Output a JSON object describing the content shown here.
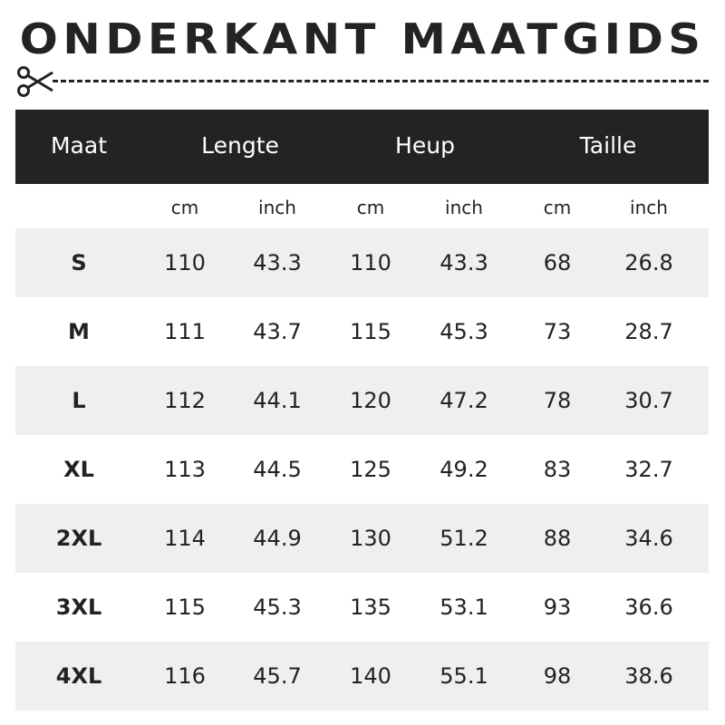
{
  "title": "ONDERKANT MAATGIDS",
  "icons": {
    "scissors": "scissors-icon"
  },
  "colors": {
    "header_bg": "#232323",
    "stripe": "#efefef"
  },
  "header": {
    "size": "Maat",
    "length": "Lengte",
    "hip": "Heup",
    "waist": "Taille"
  },
  "units": [
    "cm",
    "inch",
    "cm",
    "inch",
    "cm",
    "inch"
  ],
  "rows": [
    {
      "size": "S",
      "values": [
        "110",
        "43.3",
        "110",
        "43.3",
        "68",
        "26.8"
      ]
    },
    {
      "size": "M",
      "values": [
        "111",
        "43.7",
        "115",
        "45.3",
        "73",
        "28.7"
      ]
    },
    {
      "size": "L",
      "values": [
        "112",
        "44.1",
        "120",
        "47.2",
        "78",
        "30.7"
      ]
    },
    {
      "size": "XL",
      "values": [
        "113",
        "44.5",
        "125",
        "49.2",
        "83",
        "32.7"
      ]
    },
    {
      "size": "2XL",
      "values": [
        "114",
        "44.9",
        "130",
        "51.2",
        "88",
        "34.6"
      ]
    },
    {
      "size": "3XL",
      "values": [
        "115",
        "45.3",
        "135",
        "53.1",
        "93",
        "36.6"
      ]
    },
    {
      "size": "4XL",
      "values": [
        "116",
        "45.7",
        "140",
        "55.1",
        "98",
        "38.6"
      ]
    }
  ]
}
